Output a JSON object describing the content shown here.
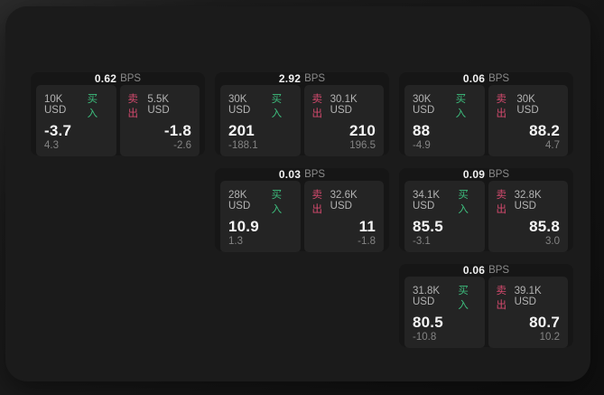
{
  "colors": {
    "buy_green": "#3dbd7d",
    "sell_red": "#d54a6e",
    "window_bg": "#1b1b1b",
    "card_bg": "#161616",
    "panel_bg": "#242424"
  },
  "cards": [
    {
      "bps_value": "0.62",
      "bps_unit": "BPS",
      "buy": {
        "amount": "10K USD",
        "side_label": "买入",
        "value": "-3.7",
        "sub_value": "4.3"
      },
      "sell": {
        "side_label": "卖出",
        "amount": "5.5K USD",
        "value": "-1.8",
        "sub_value": "-2.6"
      }
    },
    {
      "bps_value": "2.92",
      "bps_unit": "BPS",
      "buy": {
        "amount": "30K USD",
        "side_label": "买入",
        "value": "201",
        "sub_value": "-188.1"
      },
      "sell": {
        "side_label": "卖出",
        "amount": "30.1K USD",
        "value": "210",
        "sub_value": "196.5"
      }
    },
    {
      "bps_value": "0.06",
      "bps_unit": "BPS",
      "buy": {
        "amount": "30K USD",
        "side_label": "买入",
        "value": "88",
        "sub_value": "-4.9"
      },
      "sell": {
        "side_label": "卖出",
        "amount": "30K USD",
        "value": "88.2",
        "sub_value": "4.7"
      }
    },
    {
      "bps_value": "0.03",
      "bps_unit": "BPS",
      "buy": {
        "amount": "28K USD",
        "side_label": "买入",
        "value": "10.9",
        "sub_value": "1.3"
      },
      "sell": {
        "side_label": "卖出",
        "amount": "32.6K USD",
        "value": "11",
        "sub_value": "-1.8"
      }
    },
    {
      "bps_value": "0.09",
      "bps_unit": "BPS",
      "buy": {
        "amount": "34.1K USD",
        "side_label": "买入",
        "value": "85.5",
        "sub_value": "-3.1"
      },
      "sell": {
        "side_label": "卖出",
        "amount": "32.8K USD",
        "value": "85.8",
        "sub_value": "3.0"
      }
    },
    {
      "bps_value": "0.06",
      "bps_unit": "BPS",
      "buy": {
        "amount": "31.8K USD",
        "side_label": "买入",
        "value": "80.5",
        "sub_value": "-10.8"
      },
      "sell": {
        "side_label": "卖出",
        "amount": "39.1K USD",
        "value": "80.7",
        "sub_value": "10.2"
      }
    }
  ]
}
